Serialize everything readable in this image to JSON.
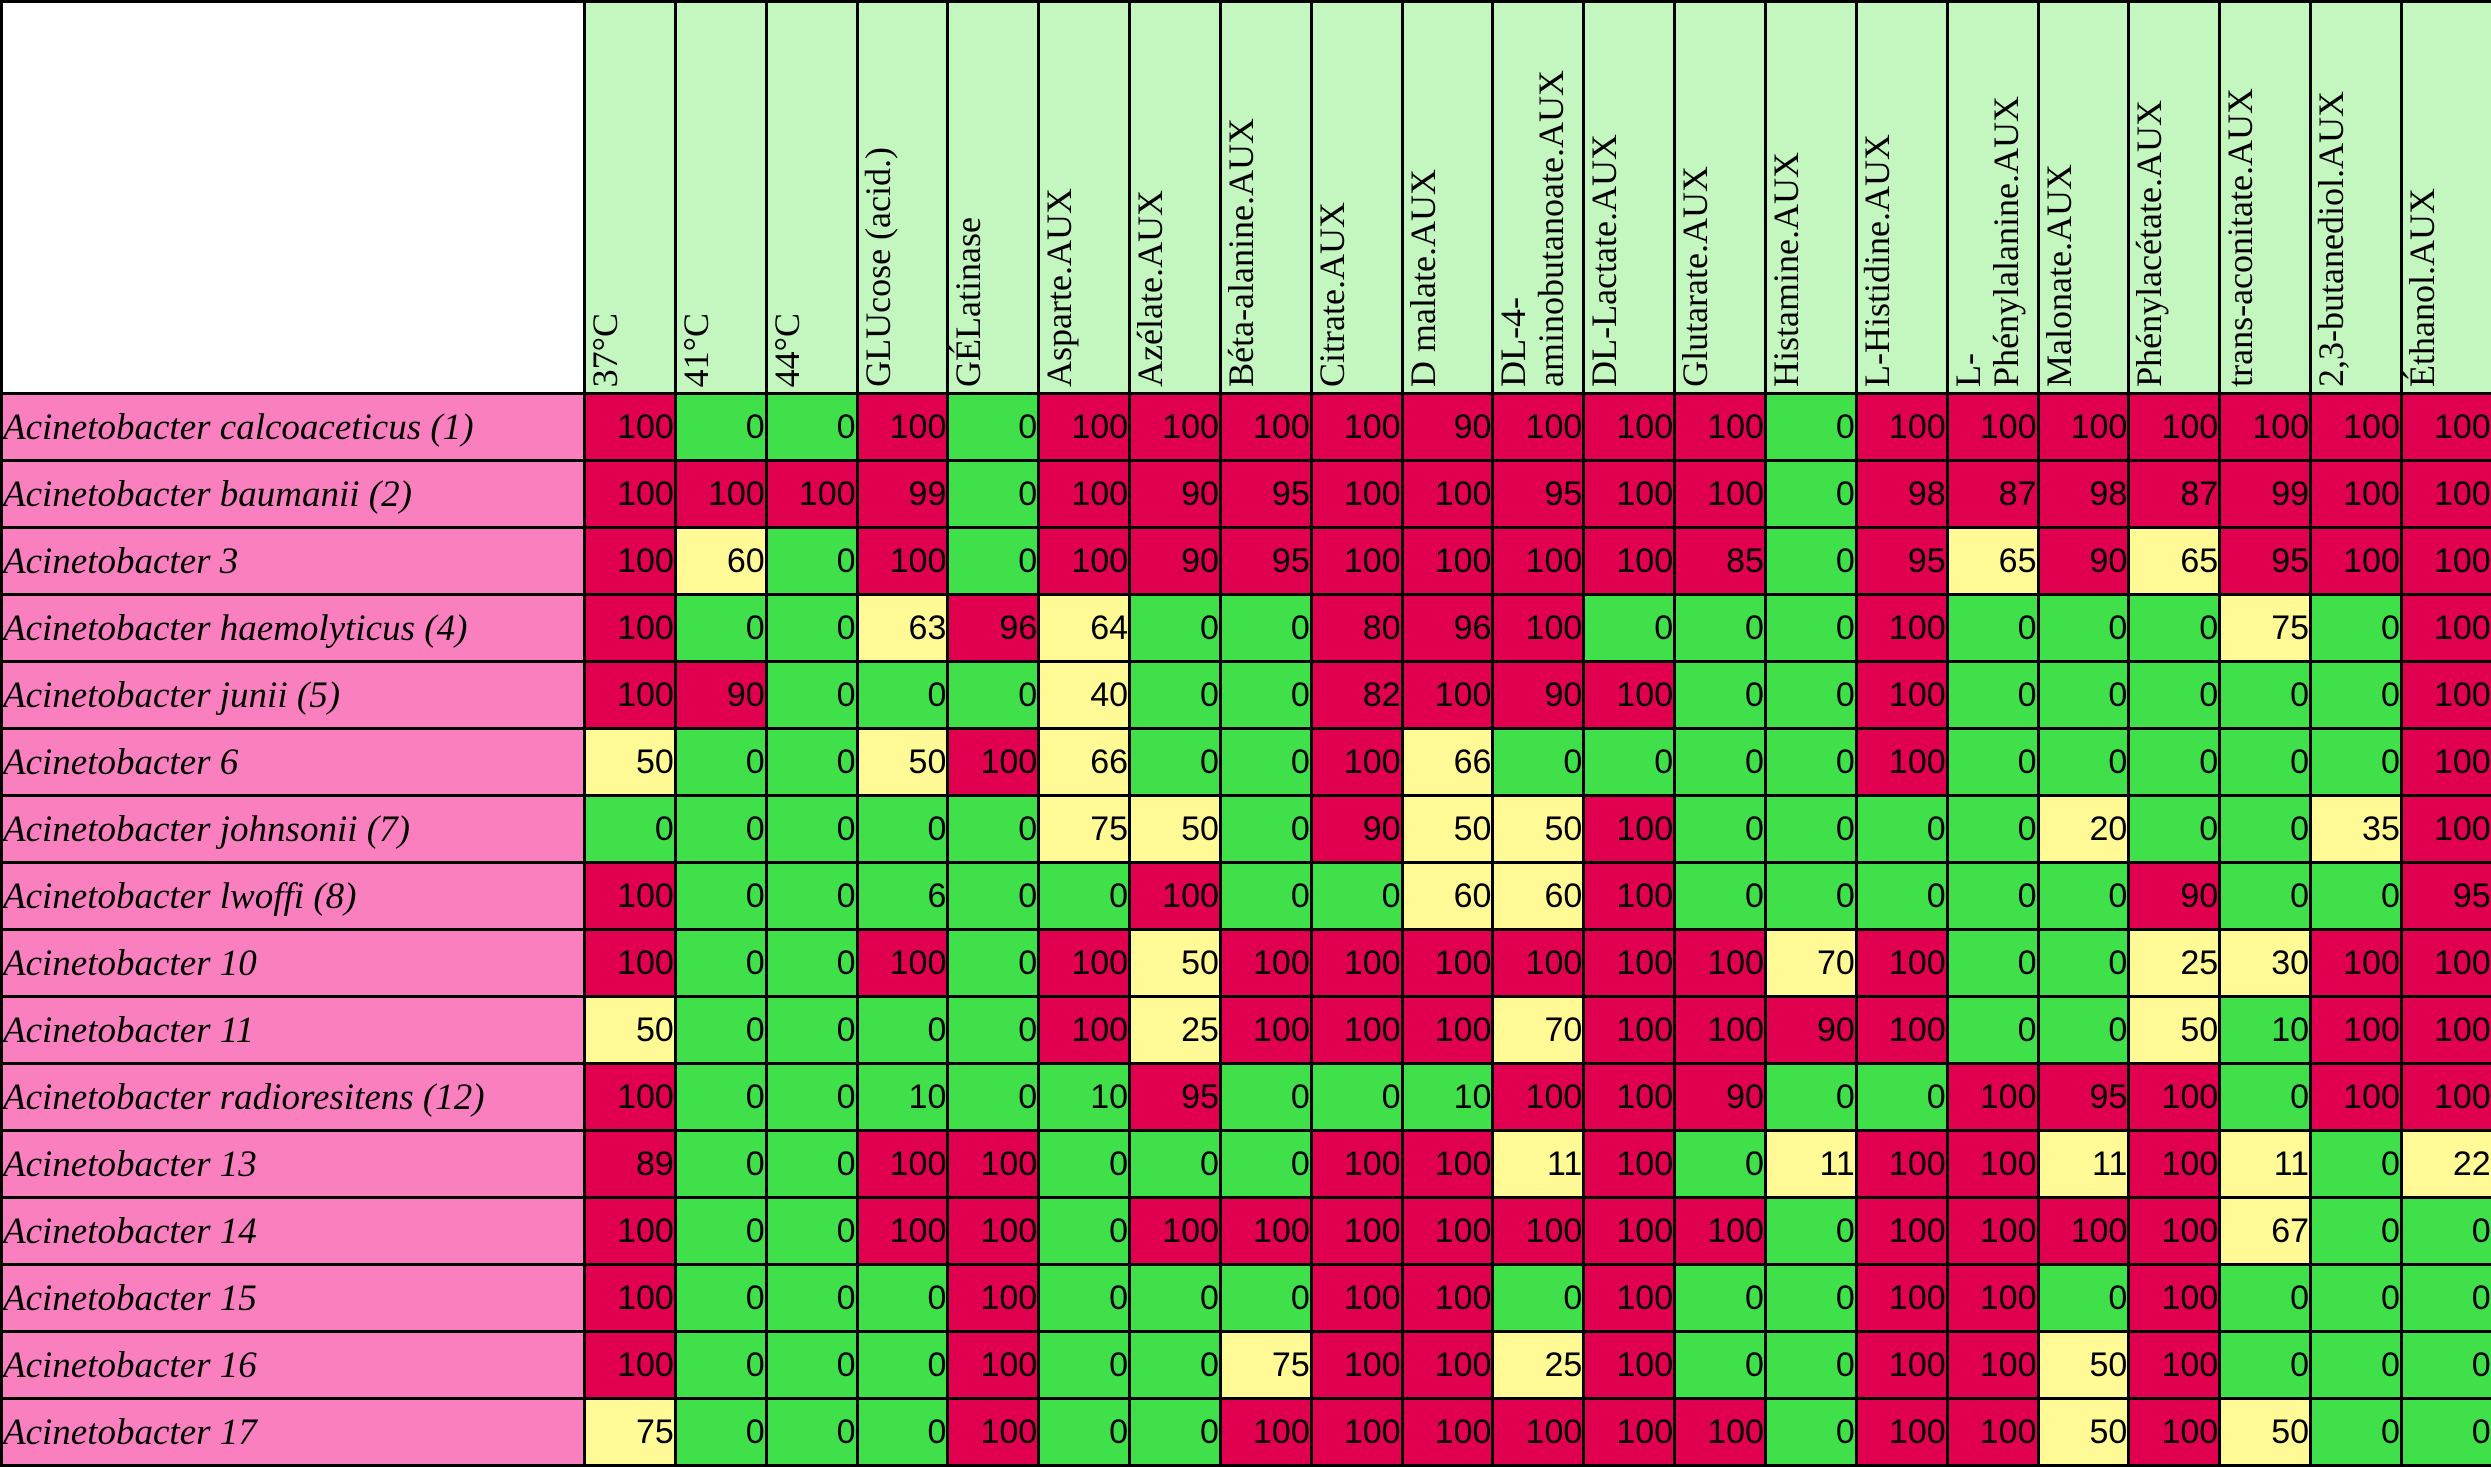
{
  "colors": {
    "high": "#e0004f",
    "medium": "#fffa96",
    "low": "#3fe04a",
    "header_bg": "#c4f7c0",
    "row_label_bg": "#f97fbf"
  },
  "table": {
    "columns": [
      "37°C",
      "41°C",
      "44°C",
      "GLUcose (acid.)",
      "GÉLatinase",
      "Asparte.AUX",
      "Azélate.AUX",
      "Béta-alanine.AUX",
      "Citrate.AUX",
      "D malate.AUX",
      "DL-4-\naminobutanoate.AUX",
      "DL-Lactate.AUX",
      "Glutarate.AUX",
      "Histamine.AUX",
      "L-Histidine.AUX",
      "L-\nPhénylalanine.AUX",
      "Malonate.AUX",
      "Phénylacétate.AUX",
      "trans-aconitate.AUX",
      "2,3-butanediol.AUX",
      "Éthanol.AUX"
    ],
    "rows": [
      {
        "label": "Acinetobacter calcoaceticus  (1)",
        "values": [
          "100",
          "0",
          "0",
          "100",
          "0",
          "100",
          "100",
          "100",
          "100",
          "90",
          "100",
          "100",
          "100",
          "0",
          "100",
          "100",
          "100",
          "100",
          "100",
          "100",
          "100"
        ]
      },
      {
        "label": "Acinetobacter baumanii  (2)",
        "values": [
          "100",
          "100",
          "100",
          "99",
          "0",
          "100",
          "90",
          "95",
          "100",
          "100",
          "95",
          "100",
          "100",
          "0",
          "98",
          "87",
          "98",
          "87",
          "99",
          "100",
          "100"
        ]
      },
      {
        "label": "Acinetobacter 3",
        "values": [
          "100",
          "60",
          "0",
          "100",
          "0",
          "100",
          "90",
          "95",
          "100",
          "100",
          "100",
          "100",
          "85",
          "0",
          "95",
          "65",
          "90",
          "65",
          "95",
          "100",
          "100"
        ]
      },
      {
        "label": "Acinetobacter haemolyticus (4)",
        "values": [
          "100",
          "0",
          "0",
          "63",
          "96",
          "64",
          "0",
          "0",
          "80",
          "96",
          "100",
          "0",
          "0",
          "0",
          "100",
          "0",
          "0",
          "0",
          "75",
          "0",
          "100"
        ]
      },
      {
        "label": "Acinetobacter junii (5)",
        "values": [
          "100",
          "90",
          "0",
          "0",
          "0",
          "40",
          "0",
          "0",
          "82",
          "100",
          "90",
          "100",
          "0",
          "0",
          "100",
          "0",
          "0",
          "0",
          "0",
          "0",
          "100"
        ]
      },
      {
        "label": "Acinetobacter 6",
        "values": [
          "50",
          "0",
          "0",
          "50",
          "100",
          "66",
          "0",
          "0",
          "100",
          "66",
          "0",
          "0",
          "0",
          "0",
          "100",
          "0",
          "0",
          "0",
          "0",
          "0",
          "100"
        ]
      },
      {
        "label": "Acinetobacter johnsonii (7)",
        "values": [
          "0",
          "0",
          "0",
          "0",
          "0",
          "75",
          "50",
          "0",
          "90",
          "50",
          "50",
          "100",
          "0",
          "0",
          "0",
          "0",
          "20",
          "0",
          "0",
          "35",
          "100"
        ]
      },
      {
        "label": "Acinetobacter lwoffi (8)",
        "values": [
          "100",
          "0",
          "0",
          "6",
          "0",
          "0",
          "100",
          "0",
          "0",
          "60",
          "60",
          "100",
          "0",
          "0",
          "0",
          "0",
          "0",
          "90",
          "0",
          "0",
          "95"
        ]
      },
      {
        "label": "Acinetobacter 10",
        "values": [
          "100",
          "0",
          "0",
          "100",
          "0",
          "100",
          "50",
          "100",
          "100",
          "100",
          "100",
          "100",
          "100",
          "70",
          "100",
          "0",
          "0",
          "25",
          "30",
          "100",
          "100"
        ]
      },
      {
        "label": "Acinetobacter 11",
        "values": [
          "50",
          "0",
          "0",
          "0",
          "0",
          "100",
          "25",
          "100",
          "100",
          "100",
          "70",
          "100",
          "100",
          "90",
          "100",
          "0",
          "0",
          "50",
          "10",
          "100",
          "100"
        ]
      },
      {
        "label": "Acinetobacter radioresitens (12)",
        "values": [
          "100",
          "0",
          "0",
          "10",
          "0",
          "10",
          "95",
          "0",
          "0",
          "10",
          "100",
          "100",
          "90",
          "0",
          "0",
          "100",
          "95",
          "100",
          "0",
          "100",
          "100"
        ]
      },
      {
        "label": "Acinetobacter 13",
        "values": [
          "89",
          "0",
          "0",
          "100",
          "100",
          "0",
          "0",
          "0",
          "100",
          "100",
          "11",
          "100",
          "0",
          "11",
          "100",
          "100",
          "11",
          "100",
          "11",
          "0",
          "22"
        ]
      },
      {
        "label": "Acinetobacter 14",
        "values": [
          "100",
          "0",
          "0",
          "100",
          "100",
          "0",
          "100",
          "100",
          "100",
          "100",
          "100",
          "100",
          "100",
          "0",
          "100",
          "100",
          "100",
          "100",
          "67",
          "0",
          "0"
        ]
      },
      {
        "label": "Acinetobacter 15",
        "values": [
          "100",
          "0",
          "0",
          "0",
          "100",
          "0",
          "0",
          "0",
          "100",
          "100",
          "0",
          "100",
          "0",
          "0",
          "100",
          "100",
          "0",
          "100",
          "0",
          "0",
          "0"
        ]
      },
      {
        "label": "Acinetobacter 16",
        "values": [
          "100",
          "0",
          "0",
          "0",
          "100",
          "0",
          "0",
          "75",
          "100",
          "100",
          "25",
          "100",
          "0",
          "0",
          "100",
          "100",
          "50",
          "100",
          "0",
          "0",
          "0"
        ]
      },
      {
        "label": "Acinetobacter 17",
        "values": [
          "75",
          "0",
          "0",
          "0",
          "100",
          "0",
          "0",
          "100",
          "100",
          "100",
          "100",
          "100",
          "100",
          "0",
          "100",
          "100",
          "50",
          "100",
          "50",
          "0",
          "0"
        ]
      }
    ]
  }
}
